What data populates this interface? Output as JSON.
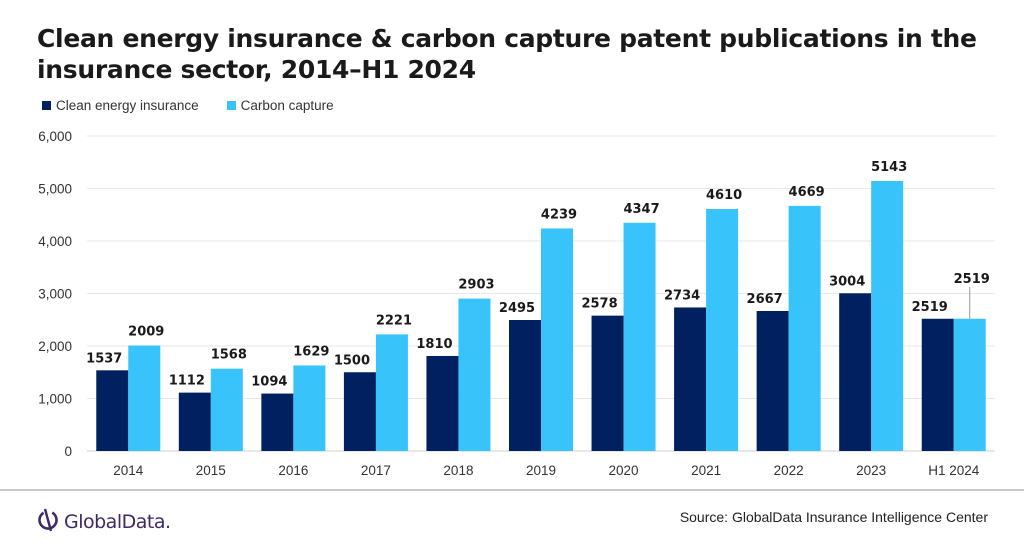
{
  "chart_data": {
    "type": "bar",
    "title": "Clean energy insurance & carbon capture patent publications in the insurance sector, 2014–H1 2024",
    "xlabel": "",
    "ylabel": "",
    "categories": [
      "2014",
      "2015",
      "2016",
      "2017",
      "2018",
      "2019",
      "2020",
      "2021",
      "2022",
      "2023",
      "H1 2024"
    ],
    "series": [
      {
        "name": "Clean energy insurance",
        "color": "#002060",
        "values": [
          1537,
          1112,
          1094,
          1500,
          1810,
          2495,
          2578,
          2734,
          2667,
          3004,
          2519
        ]
      },
      {
        "name": "Carbon capture",
        "color": "#38C3FA",
        "values": [
          2009,
          1568,
          1629,
          2221,
          2903,
          4239,
          4347,
          4610,
          4669,
          5143,
          2519
        ]
      }
    ],
    "ylim": [
      0,
      6000
    ],
    "yticks": [
      0,
      1000,
      2000,
      3000,
      4000,
      5000,
      6000
    ],
    "ytick_labels": [
      "0",
      "1,000",
      "2,000",
      "3,000",
      "4,000",
      "5,000",
      "6,000"
    ],
    "grid": true,
    "legend_position": "top-left",
    "data_labels": true
  },
  "header": {
    "title": "Clean energy insurance & carbon capture patent publications in the insurance sector, 2014–H1 2024"
  },
  "legend": [
    {
      "label": "Clean energy insurance",
      "color": "#002060"
    },
    {
      "label": "Carbon capture",
      "color": "#38C3FA"
    }
  ],
  "footer": {
    "logo_text": "GlobalData.",
    "logo_icon": "globaldata-logo-icon",
    "source": "Source: GlobalData Insurance Intelligence Center"
  }
}
